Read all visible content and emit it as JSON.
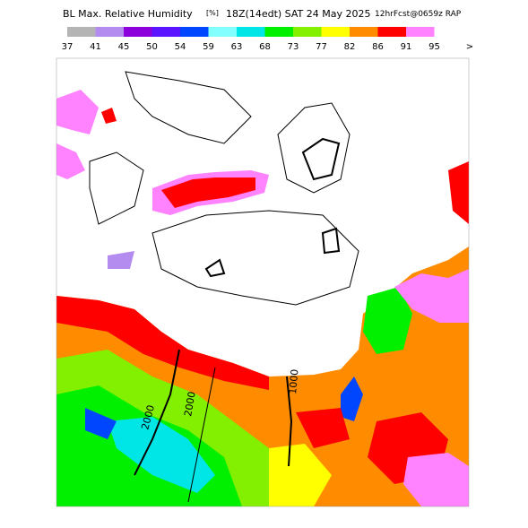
{
  "header": {
    "title": "BL Max. Relative Humidity",
    "units": "[%]",
    "valid_time": "18Z(14edt) SAT 24 May 2025",
    "forecast": "12hrFcst@0659z RAP"
  },
  "color_scale": {
    "labels": [
      "37",
      "41",
      "45",
      "50",
      "54",
      "59",
      "63",
      "68",
      "73",
      "77",
      "82",
      "86",
      "91",
      "95",
      ">"
    ],
    "colors": [
      "#b4b4b4",
      "#b48cf0",
      "#8c00dc",
      "#5a14ff",
      "#0046ff",
      "#82ffff",
      "#00e6e6",
      "#00f000",
      "#82f000",
      "#ffff00",
      "#ff8c00",
      "#ff0000",
      "#ff82ff"
    ]
  },
  "contour_labels": [
    "2000",
    "2000",
    "1000"
  ]
}
